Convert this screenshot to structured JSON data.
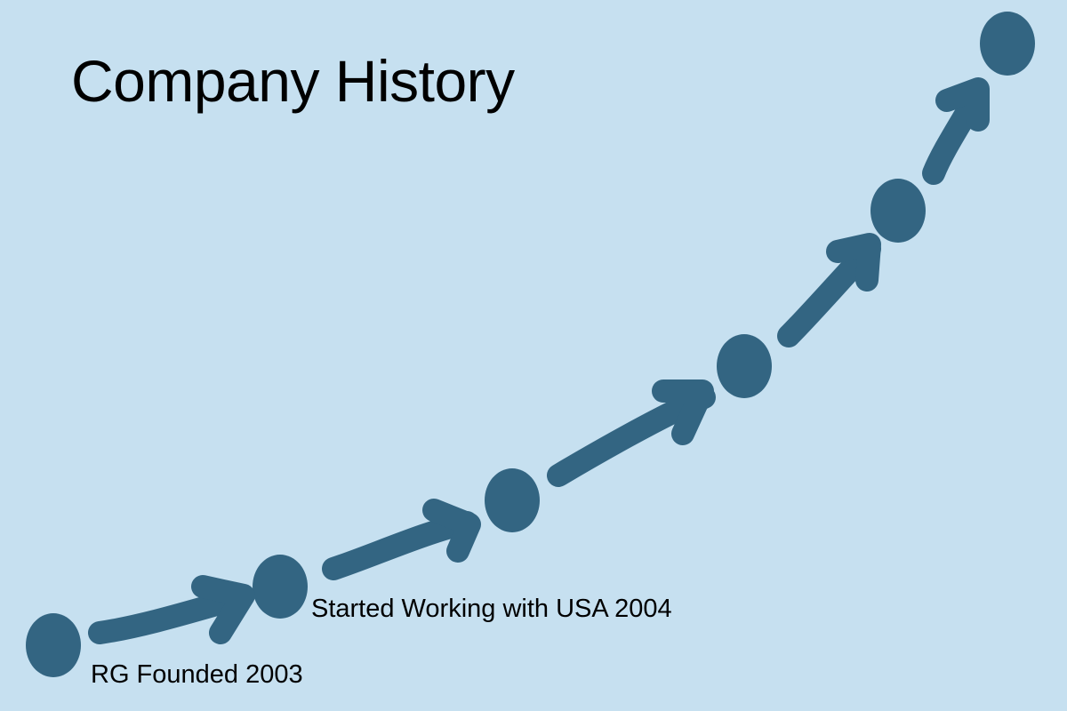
{
  "slide": {
    "title": "Company History",
    "background_color": "#c6e0f0",
    "accent_color": "#336582"
  },
  "milestones": [
    {
      "label": "RG Founded 2003"
    },
    {
      "label": "Started Working with USA 2004"
    },
    {
      "label": ""
    },
    {
      "label": ""
    },
    {
      "label": ""
    },
    {
      "label": ""
    }
  ]
}
